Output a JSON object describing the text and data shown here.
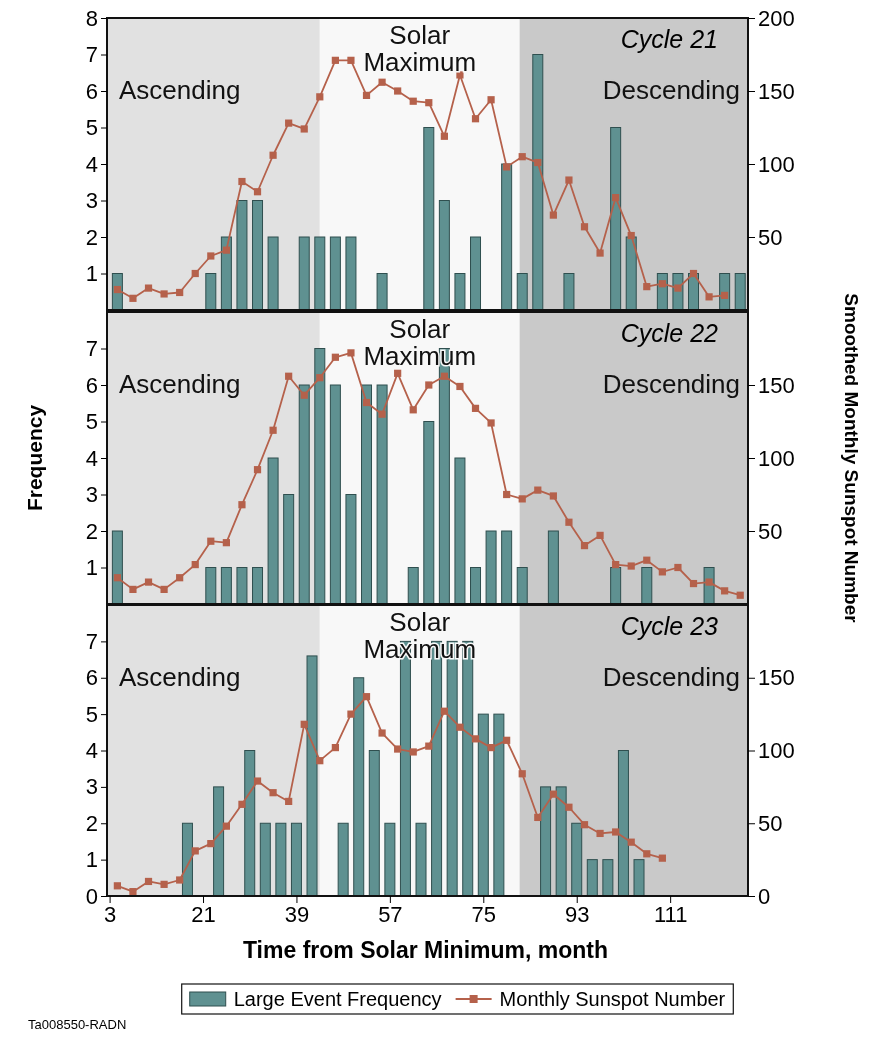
{
  "chart_data": [
    {
      "type": "bar",
      "title": "Cycle 21",
      "xlim": [
        2.5,
        126
      ],
      "ylim": [
        0,
        8
      ],
      "yticks": [
        1,
        2,
        3,
        4,
        5,
        6,
        7,
        8
      ],
      "y2lim": [
        0,
        200
      ],
      "y2ticks": [
        50,
        100,
        150,
        200
      ],
      "tick_labels": "y",
      "marker": "square",
      "line_style": "solid",
      "bands": [
        {
          "axis": "x",
          "from": 2.5,
          "to": 43.5,
          "label": "Ascending",
          "color": "#e1e1e1"
        },
        {
          "axis": "x",
          "from": 43.5,
          "to": 82,
          "label": "Solar Maximum",
          "color": "#f8f8f8"
        },
        {
          "axis": "x",
          "from": 82,
          "to": 126,
          "label": "Descending",
          "color": "#c9c9c9"
        }
      ],
      "series": [
        {
          "color": "#5f9191",
          "x": [
            4.5,
            22.5,
            25.5,
            28.5,
            31.5,
            34.5,
            40.5,
            43.5,
            46.5,
            49.5,
            55.5,
            64.5,
            67.5,
            70.5,
            73.5,
            79.5,
            82.5,
            85.5,
            91.5,
            100.5,
            103.5,
            109.5,
            112.5,
            115.5,
            121.5,
            124.5
          ],
          "values": [
            1,
            1,
            2,
            3,
            3,
            2,
            2,
            2,
            2,
            2,
            1,
            5,
            3,
            1,
            2,
            4,
            1,
            7,
            1,
            5,
            2,
            1,
            1,
            1,
            1,
            1
          ]
        },
        {
          "type": "line",
          "axis": "y2",
          "color": "#b5614b",
          "x": [
            4.5,
            7.5,
            10.5,
            13.5,
            16.5,
            19.5,
            22.5,
            25.5,
            28.5,
            31.5,
            34.5,
            37.5,
            40.5,
            43.5,
            46.5,
            49.5,
            52.5,
            55.5,
            58.5,
            61.5,
            64.5,
            67.5,
            70.5,
            73.5,
            76.5,
            79.5,
            82.5,
            85.5,
            88.5,
            91.5,
            94.5,
            97.5,
            100.5,
            103.5,
            106.5,
            109.5,
            112.5,
            115.5,
            118.5,
            121.5
          ],
          "values": [
            14,
            8,
            15,
            11,
            12,
            25,
            37,
            41,
            88,
            81,
            106,
            128,
            124,
            146,
            171,
            171,
            147,
            156,
            150,
            143,
            142,
            119,
            161,
            131,
            144,
            98,
            105,
            101,
            65,
            89,
            57,
            39,
            77,
            51,
            16,
            18,
            15,
            25,
            9,
            10
          ]
        }
      ]
    },
    {
      "type": "bar",
      "title": "Cycle 22",
      "ylabel": "Frequency",
      "y2label": "Smoothed Monthly Sunspot Number",
      "xlim": [
        2.5,
        126
      ],
      "ylim": [
        0,
        8
      ],
      "yticks": [
        1,
        2,
        3,
        4,
        5,
        6,
        7
      ],
      "y2lim": [
        0,
        200
      ],
      "y2ticks": [
        50,
        100,
        150
      ],
      "tick_labels": "y",
      "marker": "square",
      "line_style": "solid",
      "bands": [
        {
          "axis": "x",
          "from": 2.5,
          "to": 43.5,
          "label": "Ascending",
          "color": "#e1e1e1"
        },
        {
          "axis": "x",
          "from": 43.5,
          "to": 82,
          "label": "Solar Maximum",
          "color": "#f8f8f8"
        },
        {
          "axis": "x",
          "from": 82,
          "to": 126,
          "label": "Descending",
          "color": "#c9c9c9"
        }
      ],
      "series": [
        {
          "color": "#5f9191",
          "x": [
            4.5,
            22.5,
            25.5,
            28.5,
            31.5,
            34.5,
            37.5,
            40.5,
            43.5,
            46.5,
            49.5,
            52.5,
            55.5,
            61.5,
            64.5,
            67.5,
            70.5,
            73.5,
            76.5,
            79.5,
            82.5,
            88.5,
            100.5,
            106.5,
            118.5
          ],
          "values": [
            2,
            1,
            1,
            1,
            1,
            4,
            3,
            6,
            7,
            6,
            3,
            6,
            6,
            1,
            5,
            7,
            4,
            1,
            2,
            2,
            1,
            2,
            1,
            1,
            1
          ]
        },
        {
          "type": "line",
          "axis": "y2",
          "color": "#b5614b",
          "x": [
            4.5,
            7.5,
            10.5,
            13.5,
            16.5,
            19.5,
            22.5,
            25.5,
            28.5,
            31.5,
            34.5,
            37.5,
            40.5,
            43.5,
            46.5,
            49.5,
            52.5,
            55.5,
            58.5,
            61.5,
            64.5,
            67.5,
            70.5,
            73.5,
            76.5,
            79.5,
            82.5,
            85.5,
            88.5,
            91.5,
            94.5,
            97.5,
            100.5,
            103.5,
            106.5,
            109.5,
            112.5,
            115.5,
            118.5,
            121.5,
            124.5
          ],
          "values": [
            18,
            10,
            15,
            10,
            18,
            27,
            43,
            42,
            68,
            92,
            119,
            156,
            143,
            155,
            169,
            172,
            138,
            130,
            158,
            133,
            150,
            156,
            149,
            134,
            124,
            75,
            72,
            78,
            74,
            56,
            40,
            47,
            27,
            26,
            30,
            22,
            25,
            14,
            15,
            9,
            6
          ]
        }
      ]
    },
    {
      "type": "bar",
      "title": "Cycle 23",
      "xlabel": "Time from Solar Minimum, month",
      "xlim": [
        2.5,
        126
      ],
      "xticks": [
        3,
        21,
        39,
        57,
        75,
        93,
        111
      ],
      "ylim": [
        0,
        8
      ],
      "yticks": [
        0,
        1,
        2,
        3,
        4,
        5,
        6,
        7
      ],
      "y2lim": [
        0,
        200
      ],
      "y2ticks": [
        0,
        50,
        100,
        150
      ],
      "marker": "square",
      "line_style": "solid",
      "legend": "bottom",
      "annotations": [
        "Ta008550-RADN"
      ],
      "bands": [
        {
          "axis": "x",
          "from": 2.5,
          "to": 43.5,
          "label": "Ascending",
          "color": "#e1e1e1"
        },
        {
          "axis": "x",
          "from": 43.5,
          "to": 82,
          "label": "Solar Maximum",
          "color": "#f8f8f8"
        },
        {
          "axis": "x",
          "from": 82,
          "to": 126,
          "label": "Descending",
          "color": "#c9c9c9"
        }
      ],
      "series": [
        {
          "name": "Large Event Frequency",
          "color": "#5f9191",
          "x": [
            18,
            24,
            30,
            33,
            36,
            39,
            42,
            48,
            51,
            54,
            57,
            60,
            63,
            66,
            69,
            72,
            75,
            78,
            87,
            90,
            93,
            96,
            99,
            102,
            105
          ],
          "values": [
            2,
            3,
            4,
            2,
            2,
            2,
            6.6,
            2,
            6,
            4,
            2,
            7,
            2,
            7,
            7,
            7,
            5,
            5,
            3,
            3,
            2,
            1,
            1,
            4,
            1
          ]
        },
        {
          "name": "Monthly Sunspot Number",
          "type": "line",
          "axis": "y2",
          "color": "#b5614b",
          "x": [
            4.5,
            7.5,
            10.5,
            13.5,
            16.5,
            19.5,
            22.5,
            25.5,
            28.5,
            31.5,
            34.5,
            37.5,
            40.5,
            43.5,
            46.5,
            49.5,
            52.5,
            55.5,
            58.5,
            61.5,
            64.5,
            67.5,
            70.5,
            73.5,
            76.5,
            79.5,
            82.5,
            85.5,
            88.5,
            91.5,
            94.5,
            97.5,
            100.5,
            103.5,
            106.5,
            109.5
          ],
          "values": [
            7,
            3,
            10,
            8,
            11,
            31,
            36,
            48,
            63,
            79,
            71,
            65,
            118,
            93,
            102,
            125,
            137,
            112,
            101,
            99,
            103,
            127,
            116,
            108,
            102,
            107,
            84,
            54,
            70,
            61,
            49,
            43,
            44,
            37,
            29,
            26
          ]
        }
      ]
    }
  ]
}
